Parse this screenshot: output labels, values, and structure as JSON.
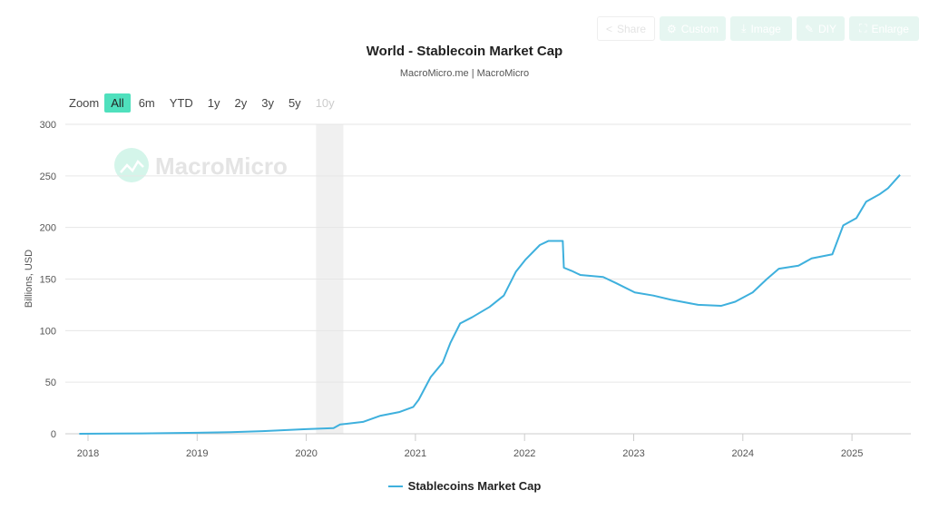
{
  "toolbar": {
    "share": "Share",
    "custom": "Custom",
    "image": "Image",
    "diy": "DIY",
    "enlarge": "Enlarge"
  },
  "zoom": {
    "label": "Zoom",
    "options": [
      "All",
      "6m",
      "YTD",
      "1y",
      "2y",
      "3y",
      "5y",
      "10y"
    ],
    "selected": "All",
    "disabled": [
      "10y"
    ]
  },
  "watermark": "MacroMicro",
  "colors": {
    "line": "#3eb0dd",
    "accent": "#4fe0bd",
    "band": "#f0f0f0"
  },
  "chart_data": {
    "type": "line",
    "title": "World - Stablecoin Market Cap",
    "subtitle": "MacroMicro.me | MacroMicro",
    "ylabel": "Billions, USD",
    "ylim": [
      0,
      300
    ],
    "yticks": [
      0,
      50,
      100,
      150,
      200,
      250,
      300
    ],
    "xlim": [
      2017.8,
      2025.55
    ],
    "xticks": [
      "2018",
      "2019",
      "2020",
      "2021",
      "2022",
      "2023",
      "2024",
      "2025"
    ],
    "grid": true,
    "legend_position": "bottom",
    "shaded_bands": [
      [
        2020.09,
        2020.34
      ]
    ],
    "series": [
      {
        "name": "Stablecoins Market Cap",
        "points": [
          [
            2017.92,
            0
          ],
          [
            2018.5,
            0.3
          ],
          [
            2019.0,
            1
          ],
          [
            2019.3,
            1.5
          ],
          [
            2019.6,
            2.5
          ],
          [
            2020.0,
            4.5
          ],
          [
            2020.25,
            5.5
          ],
          [
            2020.31,
            9
          ],
          [
            2020.52,
            11.5
          ],
          [
            2020.68,
            17.5
          ],
          [
            2020.85,
            21
          ],
          [
            2020.98,
            26
          ],
          [
            2021.03,
            33
          ],
          [
            2021.14,
            55
          ],
          [
            2021.25,
            69
          ],
          [
            2021.32,
            88
          ],
          [
            2021.41,
            107
          ],
          [
            2021.52,
            113
          ],
          [
            2021.68,
            123
          ],
          [
            2021.81,
            134
          ],
          [
            2021.92,
            157
          ],
          [
            2022.01,
            169
          ],
          [
            2022.14,
            183
          ],
          [
            2022.22,
            187
          ],
          [
            2022.35,
            187
          ],
          [
            2022.36,
            161
          ],
          [
            2022.43,
            158
          ],
          [
            2022.51,
            154
          ],
          [
            2022.72,
            152
          ],
          [
            2022.84,
            146
          ],
          [
            2023.01,
            137
          ],
          [
            2023.18,
            134
          ],
          [
            2023.34,
            130
          ],
          [
            2023.59,
            125
          ],
          [
            2023.8,
            124
          ],
          [
            2023.93,
            128
          ],
          [
            2024.09,
            137
          ],
          [
            2024.22,
            150
          ],
          [
            2024.33,
            160
          ],
          [
            2024.51,
            163
          ],
          [
            2024.63,
            170
          ],
          [
            2024.82,
            174
          ],
          [
            2024.92,
            202
          ],
          [
            2025.04,
            209
          ],
          [
            2025.13,
            225
          ],
          [
            2025.25,
            232
          ],
          [
            2025.33,
            238
          ],
          [
            2025.44,
            251
          ]
        ]
      }
    ]
  }
}
